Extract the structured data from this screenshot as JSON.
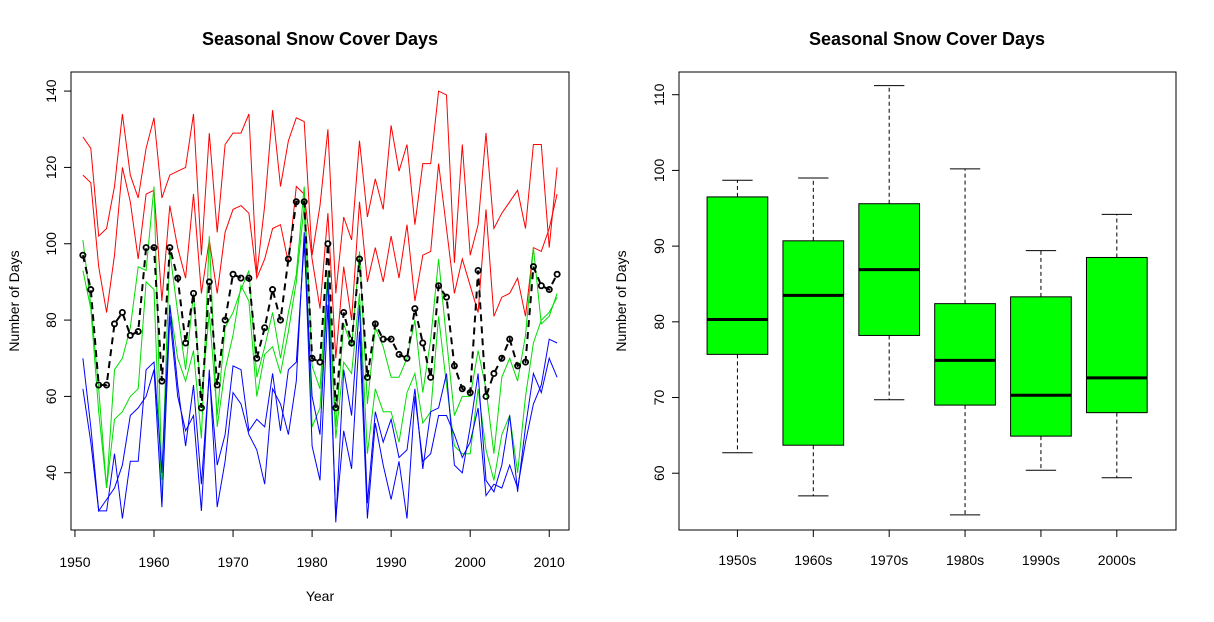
{
  "chart_data": [
    {
      "type": "line",
      "title": "Seasonal Snow Cover Days",
      "xlabel": "Year",
      "ylabel": "Number of Days",
      "xlim": [
        1949.5,
        2012.5
      ],
      "ylim": [
        25,
        145
      ],
      "xticks": [
        1950,
        1960,
        1970,
        1980,
        1990,
        2000,
        2010
      ],
      "yticks": [
        40,
        60,
        80,
        100,
        120,
        140
      ],
      "x": [
        1951,
        1952,
        1953,
        1954,
        1955,
        1956,
        1957,
        1958,
        1959,
        1960,
        1961,
        1962,
        1963,
        1964,
        1965,
        1966,
        1967,
        1968,
        1969,
        1970,
        1971,
        1972,
        1973,
        1974,
        1975,
        1976,
        1977,
        1978,
        1979,
        1980,
        1981,
        1982,
        1983,
        1984,
        1985,
        1986,
        1987,
        1988,
        1989,
        1990,
        1991,
        1992,
        1993,
        1994,
        1995,
        1996,
        1997,
        1998,
        1999,
        2000,
        2001,
        2002,
        2003,
        2004,
        2005,
        2006,
        2007,
        2008,
        2009,
        2010,
        2011
      ],
      "series": [
        {
          "color": "#ff0000",
          "style": "solid",
          "values": [
            128,
            125,
            102,
            104,
            115,
            134,
            118,
            112,
            125,
            133,
            112,
            118,
            119,
            120,
            134,
            97,
            129,
            103,
            126,
            129,
            129,
            134,
            92,
            110,
            135,
            115,
            127,
            133,
            132,
            97,
            110,
            130,
            87,
            107,
            101,
            127,
            107,
            117,
            109,
            131,
            119,
            126,
            105,
            121,
            121,
            140,
            139,
            95,
            126,
            97,
            105,
            129,
            104,
            108,
            111,
            114,
            104,
            126,
            126,
            99,
            120
          ]
        },
        {
          "color": "#ff0000",
          "style": "solid",
          "values": [
            118,
            116,
            94,
            82,
            97,
            120,
            111,
            96,
            113,
            114,
            85,
            110,
            99,
            91,
            113,
            87,
            101,
            87,
            103,
            109,
            110,
            108,
            91,
            96,
            104,
            105,
            95,
            115,
            113,
            96,
            83,
            108,
            70,
            94,
            80,
            111,
            90,
            99,
            90,
            102,
            91,
            105,
            85,
            97,
            98,
            121,
            104,
            87,
            96,
            89,
            82,
            109,
            81,
            86,
            87,
            91,
            81,
            99,
            98,
            104,
            113
          ]
        },
        {
          "color": "#00dd00",
          "style": "solid",
          "values": [
            101,
            84,
            62,
            36,
            67,
            70,
            78,
            94,
            93,
            115,
            38,
            98,
            82,
            67,
            87,
            59,
            82,
            55,
            78,
            82,
            88,
            93,
            65,
            73,
            82,
            70,
            82,
            92,
            115,
            68,
            62,
            93,
            52,
            79,
            73,
            98,
            58,
            78,
            73,
            65,
            65,
            70,
            80,
            61,
            75,
            96,
            75,
            55,
            60,
            60,
            72,
            62,
            45,
            65,
            70,
            64,
            76,
            99,
            79,
            81,
            87
          ]
        },
        {
          "color": "#00dd00",
          "style": "solid",
          "values": [
            93,
            83,
            56,
            36,
            54,
            56,
            60,
            62,
            90,
            88,
            32,
            84,
            70,
            64,
            72,
            49,
            102,
            52,
            67,
            76,
            89,
            85,
            60,
            71,
            73,
            66,
            77,
            90,
            110,
            52,
            57,
            90,
            49,
            69,
            66,
            87,
            45,
            62,
            56,
            56,
            48,
            61,
            66,
            53,
            56,
            81,
            63,
            47,
            45,
            45,
            62,
            46,
            38,
            50,
            55,
            40,
            60,
            74,
            80,
            82,
            86
          ]
        },
        {
          "color": "#0000ff",
          "style": "solid",
          "values": [
            70,
            52,
            30,
            30,
            45,
            28,
            43,
            43,
            67,
            69,
            40,
            84,
            63,
            47,
            63,
            37,
            66,
            42,
            50,
            68,
            67,
            51,
            54,
            52,
            66,
            51,
            67,
            69,
            100,
            60,
            50,
            91,
            27,
            67,
            55,
            84,
            32,
            56,
            48,
            54,
            44,
            46,
            62,
            41,
            56,
            57,
            66,
            42,
            40,
            52,
            66,
            38,
            35,
            42,
            55,
            35,
            52,
            66,
            61,
            70,
            65
          ]
        },
        {
          "color": "#0000ff",
          "style": "solid",
          "values": [
            62,
            48,
            30,
            33,
            36,
            42,
            55,
            57,
            60,
            67,
            31,
            81,
            60,
            51,
            55,
            30,
            67,
            31,
            43,
            61,
            58,
            50,
            46,
            37,
            62,
            58,
            50,
            64,
            103,
            47,
            38,
            84,
            28,
            51,
            41,
            77,
            28,
            53,
            42,
            33,
            43,
            28,
            60,
            43,
            45,
            55,
            55,
            50,
            44,
            48,
            57,
            34,
            37,
            36,
            42,
            36,
            48,
            58,
            63,
            75,
            74
          ]
        },
        {
          "color": "#000000",
          "style": "dashed",
          "points": true,
          "values": [
            97,
            88,
            63,
            63,
            79,
            82,
            76,
            77,
            99,
            99,
            64,
            99,
            91,
            74,
            87,
            57,
            90,
            63,
            80,
            92,
            91,
            91,
            70,
            78,
            88,
            80,
            96,
            111,
            111,
            70,
            69,
            100,
            57,
            82,
            74,
            96,
            65,
            79,
            75,
            75,
            71,
            70,
            83,
            74,
            65,
            89,
            86,
            68,
            62,
            61,
            93,
            60,
            66,
            70,
            75,
            68,
            69,
            94,
            89,
            88,
            92
          ]
        }
      ]
    },
    {
      "type": "box",
      "title": "Seasonal Snow Cover Days",
      "xlabel": "",
      "ylabel": "Number of Days",
      "ylim": [
        52.5,
        113
      ],
      "yticks": [
        60,
        70,
        80,
        90,
        100,
        110
      ],
      "categories": [
        "1950s",
        "1960s",
        "1970s",
        "1980s",
        "1990s",
        "2000s"
      ],
      "fill": "#00ff00",
      "boxes": [
        {
          "min": 62.7,
          "q1": 75.7,
          "median": 80.3,
          "q3": 96.5,
          "max": 98.7
        },
        {
          "min": 57.0,
          "q1": 63.7,
          "median": 83.5,
          "q3": 90.7,
          "max": 99.0
        },
        {
          "min": 69.7,
          "q1": 78.2,
          "median": 86.9,
          "q3": 95.6,
          "max": 111.2
        },
        {
          "min": 54.5,
          "q1": 69.0,
          "median": 74.9,
          "q3": 82.4,
          "max": 100.2
        },
        {
          "min": 60.4,
          "q1": 64.9,
          "median": 70.3,
          "q3": 83.3,
          "max": 89.4
        },
        {
          "min": 59.4,
          "q1": 68.0,
          "median": 72.6,
          "q3": 88.5,
          "max": 94.2
        }
      ]
    }
  ]
}
